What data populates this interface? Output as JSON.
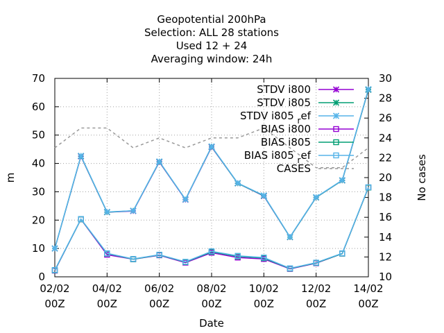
{
  "chart_data": {
    "type": "line",
    "title_lines": [
      "Geopotential 200hPa",
      "Selection: ALL      28 stations",
      "Used  12 + 24",
      "Averaging window: 24h"
    ],
    "xlabel": "Date",
    "ylabel": "m",
    "y2label": "No cases",
    "x": [
      0,
      1,
      2,
      3,
      4,
      5,
      6,
      7,
      8,
      9,
      10,
      11,
      12
    ],
    "x_ticks": [
      {
        "x": 0,
        "line1": "02/02",
        "line2": "00Z"
      },
      {
        "x": 2,
        "line1": "04/02",
        "line2": "00Z"
      },
      {
        "x": 4,
        "line1": "06/02",
        "line2": "00Z"
      },
      {
        "x": 6,
        "line1": "08/02",
        "line2": "00Z"
      },
      {
        "x": 8,
        "line1": "10/02",
        "line2": "00Z"
      },
      {
        "x": 10,
        "line1": "12/02",
        "line2": "00Z"
      },
      {
        "x": 12,
        "line1": "14/02",
        "line2": "00Z"
      }
    ],
    "ylim": [
      0,
      70
    ],
    "y_ticks": [
      0,
      10,
      20,
      30,
      40,
      50,
      60,
      70
    ],
    "y2lim": [
      10,
      30
    ],
    "y2_ticks": [
      10,
      12,
      14,
      16,
      18,
      20,
      22,
      24,
      26,
      28,
      30
    ],
    "grid": true,
    "legend_position": "top-right",
    "series": [
      {
        "name": "STDV i800",
        "axis": "y",
        "color": "#9400d3",
        "marker": "x",
        "dash": "",
        "values": [
          10.0,
          42.5,
          22.8,
          23.2,
          40.5,
          27.2,
          45.8,
          33.0,
          28.5,
          14.0,
          28.0,
          34.0,
          66.0
        ]
      },
      {
        "name": "STDV i805",
        "axis": "y",
        "color": "#009e73",
        "marker": "x",
        "dash": "",
        "values": [
          10.0,
          42.6,
          22.8,
          23.3,
          40.6,
          27.3,
          45.9,
          33.0,
          28.6,
          14.0,
          28.0,
          34.0,
          66.0
        ]
      },
      {
        "name": "STDV i805_ref",
        "axis": "y",
        "color": "#56b4e9",
        "marker": "x",
        "dash": "",
        "values": [
          10.0,
          42.7,
          22.9,
          23.3,
          40.7,
          27.3,
          46.0,
          33.1,
          28.7,
          14.1,
          28.1,
          34.1,
          66.2
        ]
      },
      {
        "name": "BIAS i800",
        "axis": "y",
        "color": "#9400d3",
        "marker": "square",
        "dash": "",
        "values": [
          2.2,
          20.3,
          7.8,
          6.2,
          7.6,
          5.0,
          8.5,
          6.8,
          6.3,
          2.8,
          4.8,
          8.2,
          31.5
        ]
      },
      {
        "name": "BIAS i805",
        "axis": "y",
        "color": "#009e73",
        "marker": "square",
        "dash": "",
        "values": [
          2.3,
          20.3,
          8.2,
          6.2,
          7.7,
          5.2,
          8.8,
          7.2,
          6.6,
          2.9,
          4.9,
          8.2,
          31.5
        ]
      },
      {
        "name": "BIAS i805_ref",
        "axis": "y",
        "color": "#56b4e9",
        "marker": "square",
        "dash": "",
        "values": [
          2.4,
          20.4,
          8.3,
          6.3,
          7.8,
          5.3,
          9.0,
          7.4,
          6.8,
          3.0,
          5.0,
          8.3,
          31.6
        ]
      },
      {
        "name": "CASES",
        "axis": "y2",
        "color": "#999999",
        "marker": "none",
        "dash": "4,4",
        "values": [
          23.0,
          25.0,
          25.0,
          23.0,
          24.0,
          23.0,
          24.0,
          24.0,
          25.0,
          23.0,
          21.0,
          21.0,
          23.0
        ]
      }
    ],
    "legend_labels": [
      {
        "main": "STDV i800",
        "sub": ""
      },
      {
        "main": "STDV i805",
        "sub": ""
      },
      {
        "main": "STDV i805",
        "sub": "r"
      },
      {
        "main": "BIAS i800",
        "sub": ""
      },
      {
        "main": "BIAS i805",
        "sub": ""
      },
      {
        "main": "BIAS i805",
        "sub": "r"
      },
      {
        "main": "CASES",
        "sub": ""
      }
    ],
    "legend_suffix": "ef"
  }
}
